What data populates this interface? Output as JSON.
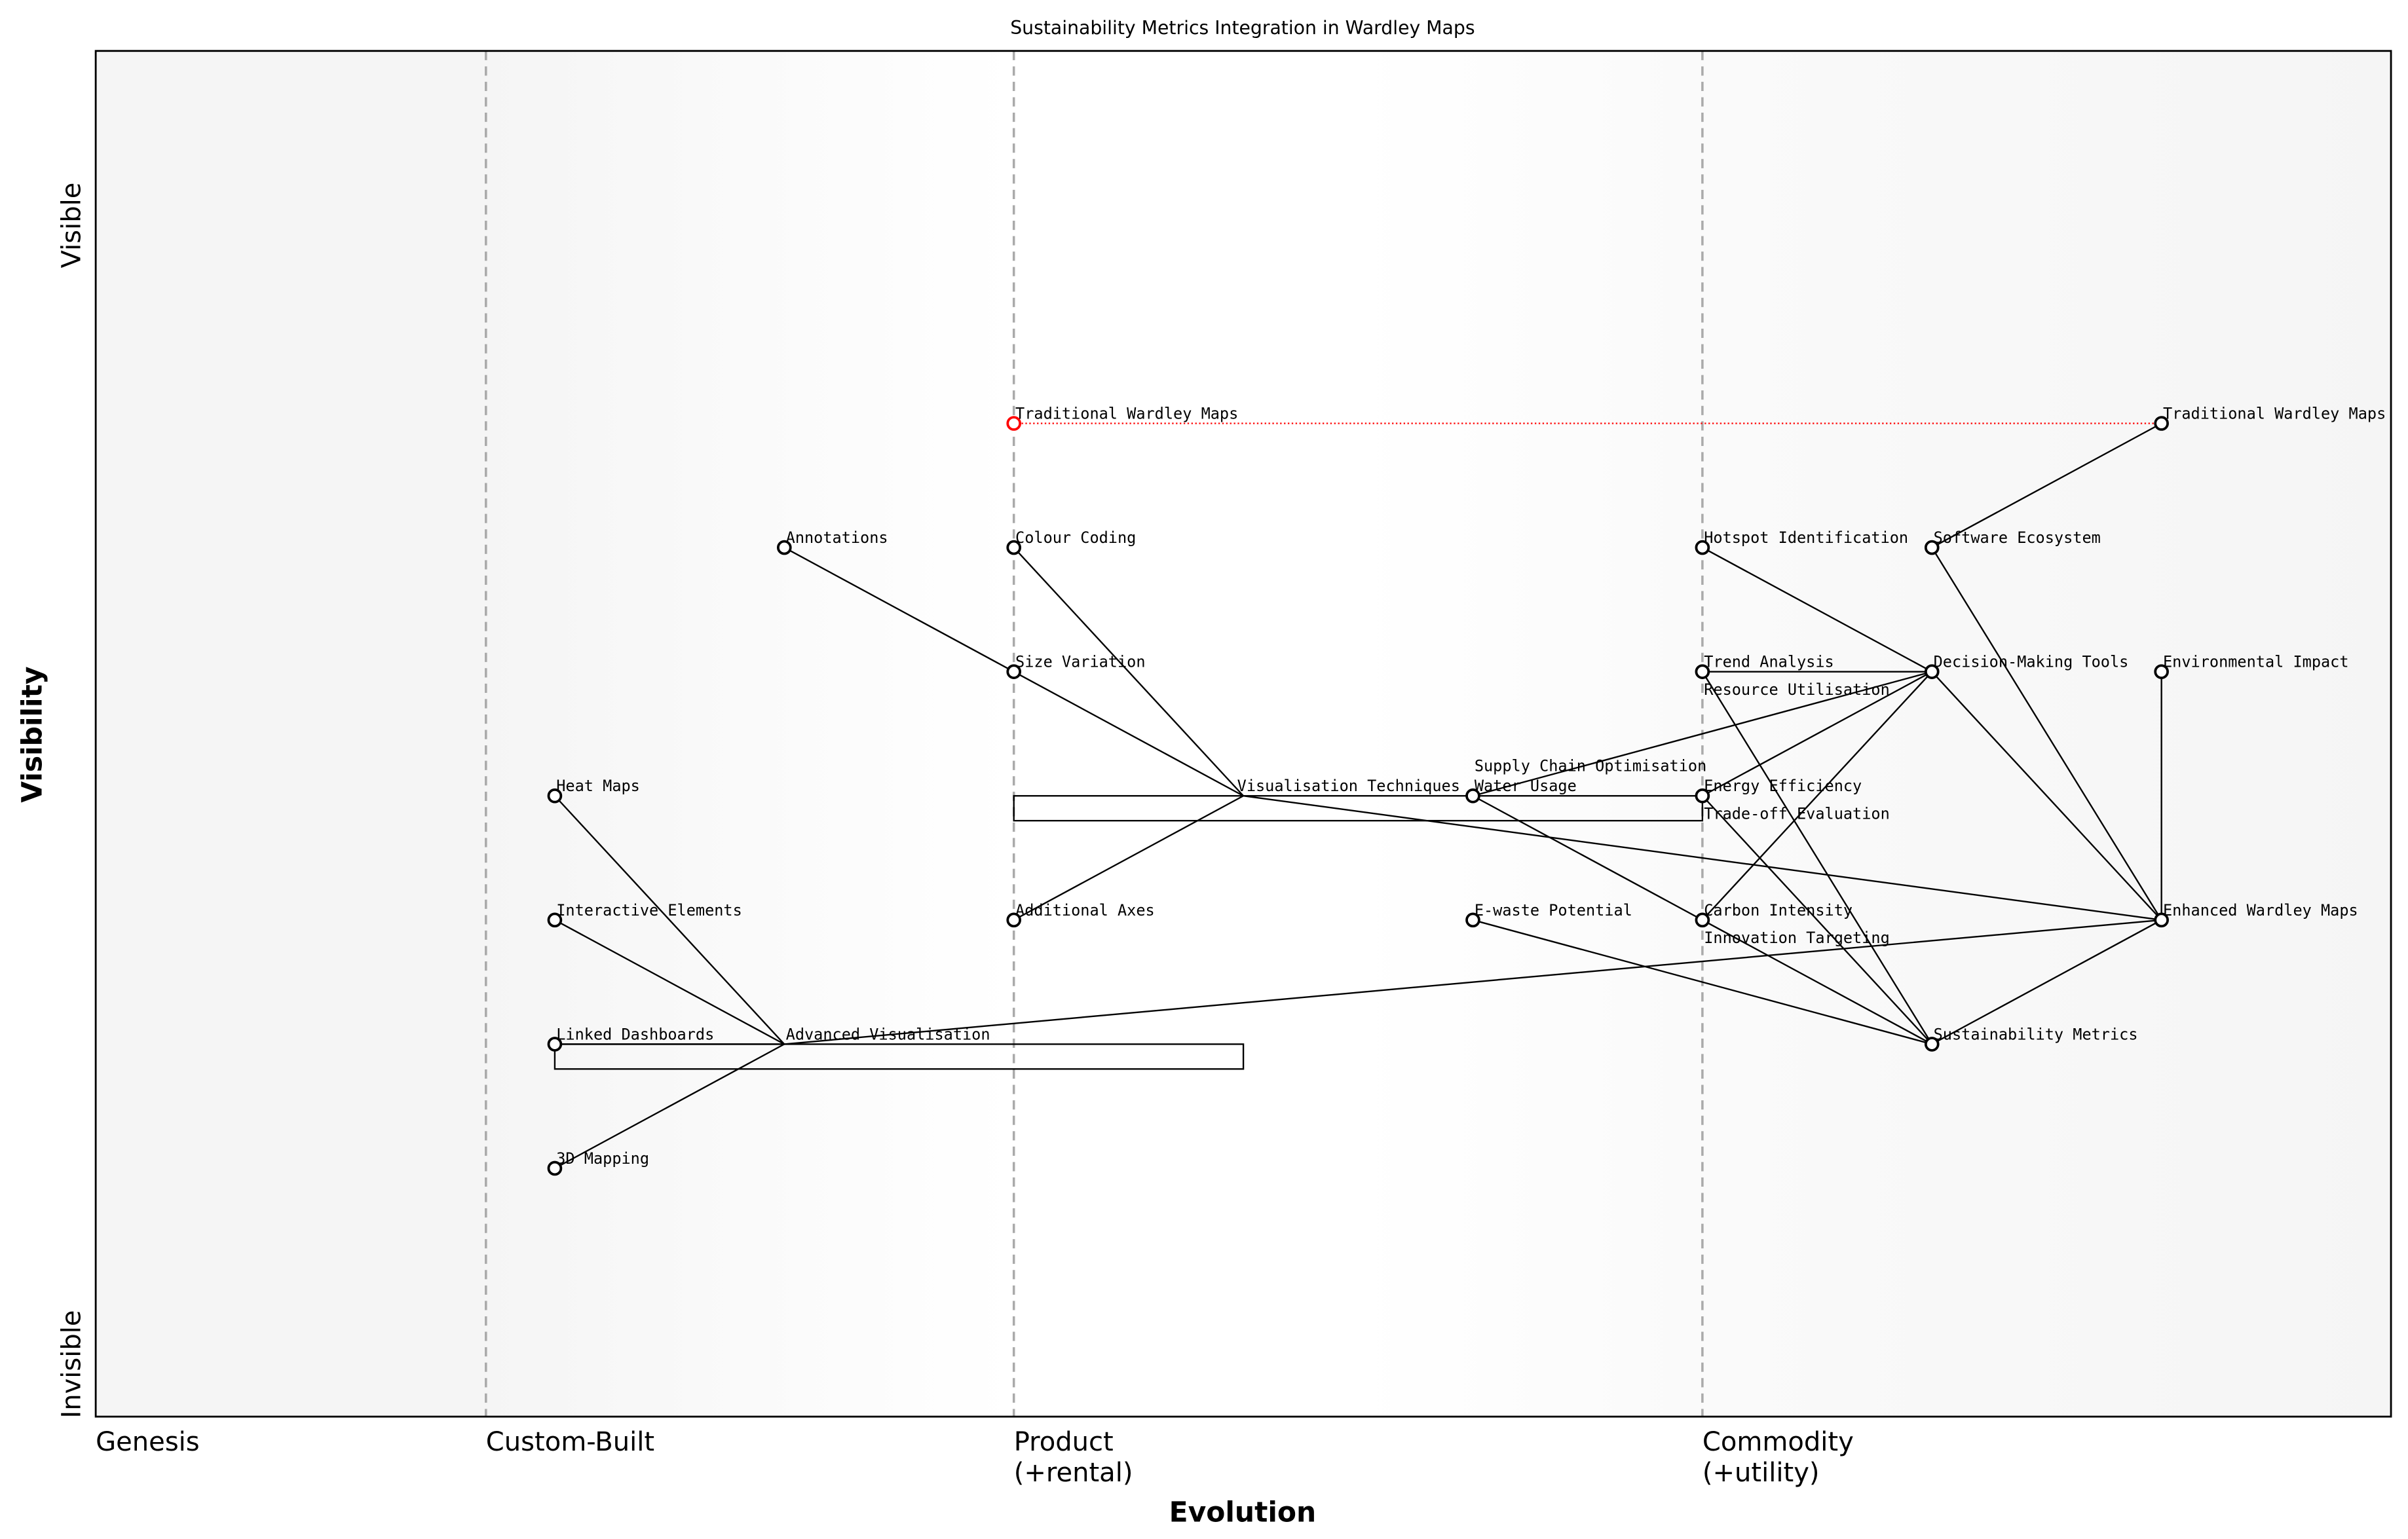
{
  "chart_data": {
    "type": "wardley-map",
    "title": "Sustainability Metrics Integration in Wardley Maps",
    "xlabel": "Evolution",
    "ylabel": "Visibility",
    "xlim": [
      0,
      1
    ],
    "ylim": [
      0,
      1.1
    ],
    "y_top_label": "Visible",
    "y_bottom_label": "Invisible",
    "stages": [
      {
        "x": 0.0,
        "label": "Genesis"
      },
      {
        "x": 0.17,
        "label": "Custom-Built"
      },
      {
        "x": 0.4,
        "label": "Product\n(+rental)"
      },
      {
        "x": 0.7,
        "label": "Commodity\n(+utility)"
      }
    ],
    "colors": {
      "node": "#000000",
      "highlight": "#ff0000",
      "stage_line": "#aaaaaa",
      "background_edge": "#f5f5f5"
    },
    "nodes": [
      {
        "id": "twm_old",
        "name": "Traditional Wardley Maps",
        "x": 0.4,
        "y": 0.8,
        "color": "#ff0000"
      },
      {
        "id": "twm",
        "name": "Traditional Wardley Maps",
        "x": 0.9,
        "y": 0.8
      },
      {
        "id": "ann",
        "name": "Annotations",
        "x": 0.3,
        "y": 0.7
      },
      {
        "id": "cc",
        "name": "Colour Coding",
        "x": 0.4,
        "y": 0.7
      },
      {
        "id": "hot",
        "name": "Hotspot Identification",
        "x": 0.7,
        "y": 0.7
      },
      {
        "id": "se",
        "name": "Software Ecosystem",
        "x": 0.8,
        "y": 0.7
      },
      {
        "id": "sv",
        "name": "Size Variation",
        "x": 0.4,
        "y": 0.6
      },
      {
        "id": "ta",
        "name": "Trend Analysis",
        "x": 0.7,
        "y": 0.6
      },
      {
        "id": "ru",
        "name": "Resource Utilisation",
        "x": 0.7,
        "y": 0.6,
        "marker": false
      },
      {
        "id": "dmt",
        "name": "Decision-Making Tools",
        "x": 0.8,
        "y": 0.6
      },
      {
        "id": "ei",
        "name": "Environmental Impact",
        "x": 0.9,
        "y": 0.6
      },
      {
        "id": "hm",
        "name": "Heat Maps",
        "x": 0.2,
        "y": 0.5
      },
      {
        "id": "vt",
        "name": "Visualisation Techniques",
        "x": 0.5,
        "y": 0.5,
        "marker": false
      },
      {
        "id": "wu",
        "name": "Water Usage",
        "x": 0.6,
        "y": 0.5
      },
      {
        "id": "sco",
        "name": "Supply Chain Optimisation",
        "x": 0.6,
        "y": 0.5,
        "marker": false
      },
      {
        "id": "ee",
        "name": "Energy Efficiency",
        "x": 0.7,
        "y": 0.5
      },
      {
        "id": "toe",
        "name": "Trade-off Evaluation",
        "x": 0.7,
        "y": 0.5,
        "marker": false
      },
      {
        "id": "ie",
        "name": "Interactive Elements",
        "x": 0.2,
        "y": 0.4
      },
      {
        "id": "aa",
        "name": "Additional Axes",
        "x": 0.4,
        "y": 0.4
      },
      {
        "id": "ew",
        "name": "E-waste Potential",
        "x": 0.6,
        "y": 0.4
      },
      {
        "id": "ci",
        "name": "Carbon Intensity",
        "x": 0.7,
        "y": 0.4
      },
      {
        "id": "it",
        "name": "Innovation Targeting",
        "x": 0.7,
        "y": 0.4,
        "marker": false
      },
      {
        "id": "ewm",
        "name": "Enhanced Wardley Maps",
        "x": 0.9,
        "y": 0.4
      },
      {
        "id": "ld",
        "name": "Linked Dashboards",
        "x": 0.2,
        "y": 0.3
      },
      {
        "id": "av",
        "name": "Advanced Visualisation",
        "x": 0.3,
        "y": 0.3,
        "marker": false
      },
      {
        "id": "sm",
        "name": "Sustainability Metrics",
        "x": 0.8,
        "y": 0.3
      },
      {
        "id": "3d",
        "name": "3D Mapping",
        "x": 0.2,
        "y": 0.2
      }
    ],
    "evolve": [
      {
        "from": "twm_old",
        "to": "twm"
      }
    ],
    "links": [
      [
        "ann",
        "sv"
      ],
      [
        "cc",
        "vt"
      ],
      [
        "sv",
        "vt"
      ],
      [
        "aa",
        "vt"
      ],
      [
        "vt",
        "ewm"
      ],
      [
        "hm",
        "av"
      ],
      [
        "ie",
        "av"
      ],
      [
        "ld",
        "av"
      ],
      [
        "3d",
        "av"
      ],
      [
        "av",
        "ewm"
      ],
      [
        "hot",
        "dmt"
      ],
      [
        "se",
        "twm"
      ],
      [
        "se",
        "ewm"
      ],
      [
        "ta",
        "dmt"
      ],
      [
        "ta",
        "sm"
      ],
      [
        "wu",
        "dmt"
      ],
      [
        "wu",
        "ci"
      ],
      [
        "ee",
        "dmt"
      ],
      [
        "ee",
        "sm"
      ],
      [
        "ci",
        "dmt"
      ],
      [
        "ci",
        "sm"
      ],
      [
        "ew",
        "sm"
      ],
      [
        "dmt",
        "ewm"
      ],
      [
        "ei",
        "ewm"
      ],
      [
        "sm",
        "ewm"
      ]
    ],
    "pipelines": [
      {
        "x_start": 0.4,
        "x_end": 0.7,
        "y_top": 0.5,
        "y_bottom": 0.48
      },
      {
        "x_start": 0.2,
        "x_end": 0.5,
        "y_top": 0.3,
        "y_bottom": 0.28
      }
    ]
  }
}
